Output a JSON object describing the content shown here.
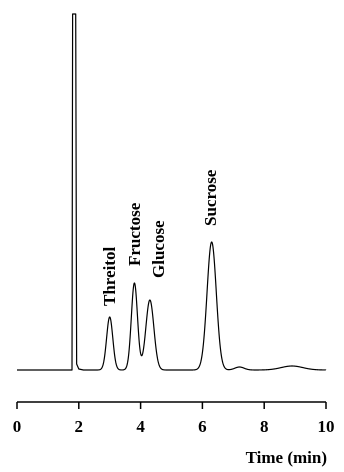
{
  "chart_data": {
    "type": "line",
    "xlabel": "Time (min)",
    "ylabel": "",
    "title": "",
    "xlim": [
      0,
      10
    ],
    "xticks": [
      0,
      2,
      4,
      6,
      8,
      10
    ],
    "grid": false,
    "legend": "none",
    "peaks": [
      {
        "name": "",
        "time": 1.85,
        "height": "off-scale"
      },
      {
        "name": "Threitol",
        "time": 3.0
      },
      {
        "name": "Fructose",
        "time": 3.8
      },
      {
        "name": "Glucose",
        "time": 4.3
      },
      {
        "name": "Sucrose",
        "time": 6.3
      }
    ]
  }
}
